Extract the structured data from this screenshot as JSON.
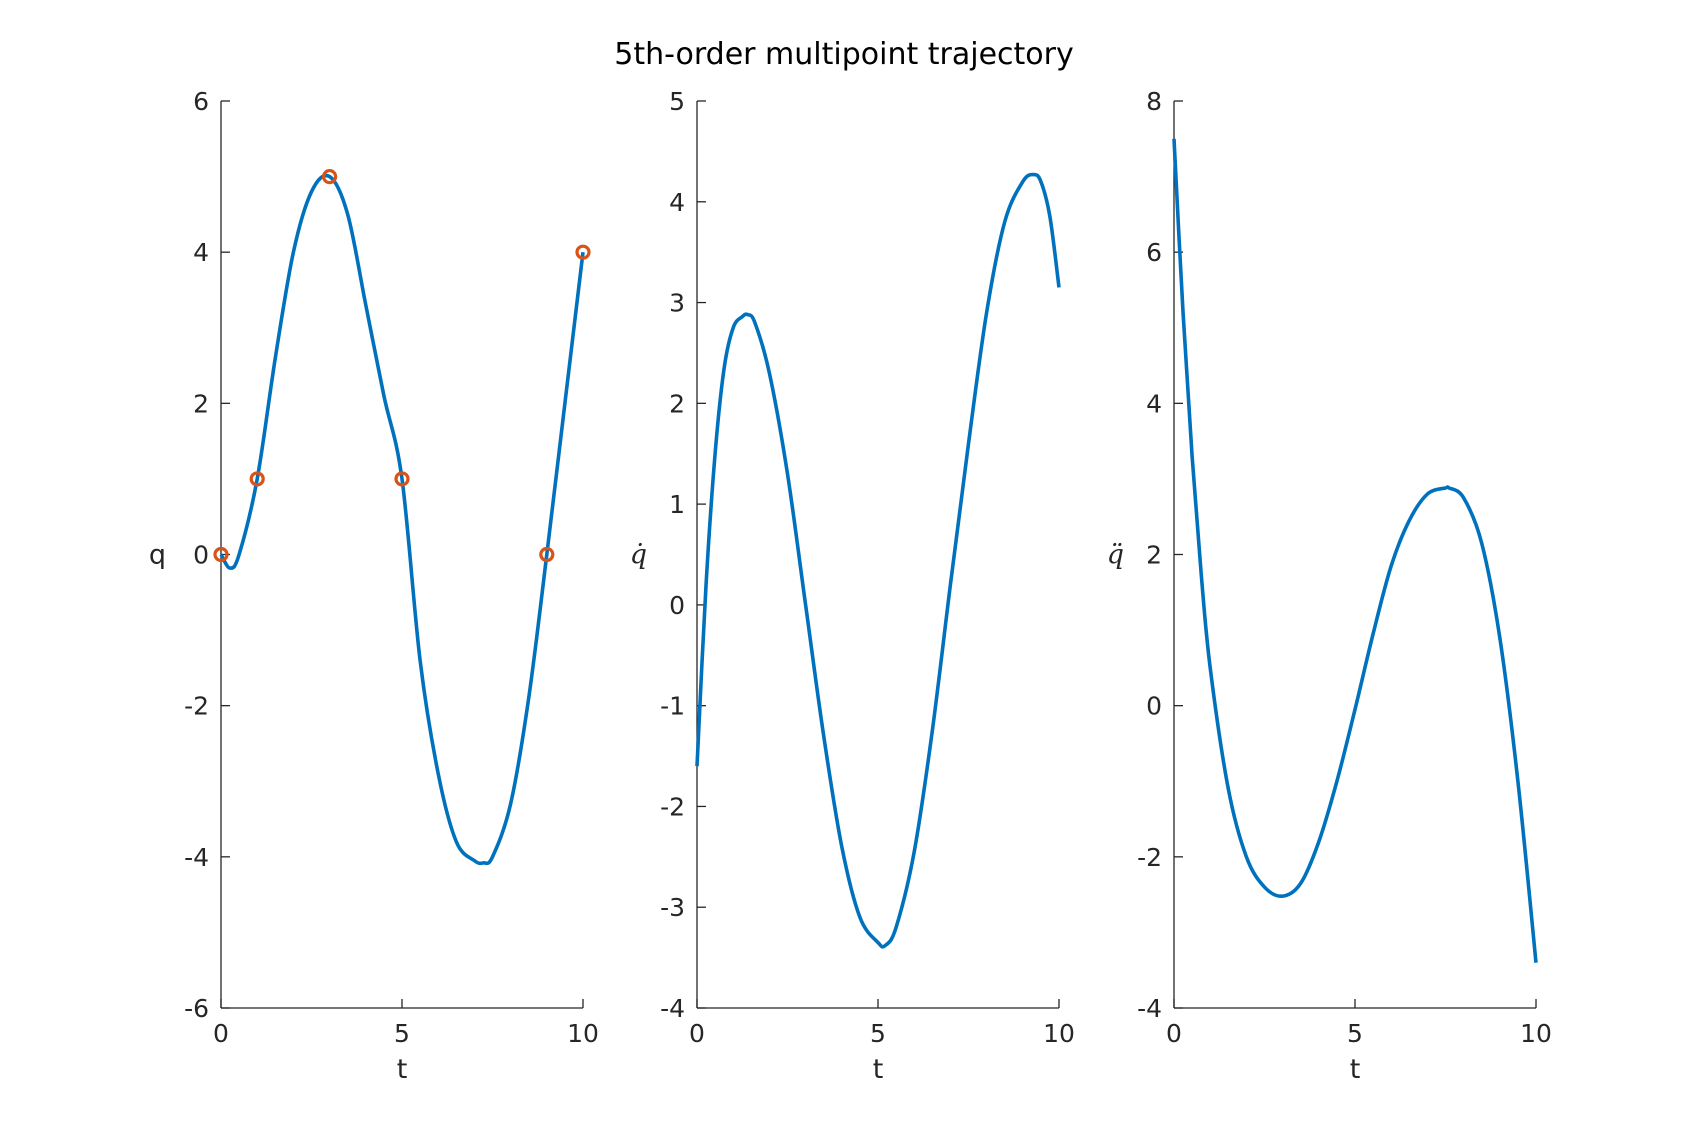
{
  "figure": {
    "title": "5th-order multipoint trajectory",
    "line_color": "#0072BD",
    "marker_color": "#D95319"
  },
  "chart_data": [
    {
      "type": "line",
      "xlabel": "t",
      "ylabel": "q",
      "xlim": [
        0,
        10
      ],
      "ylim": [
        -6,
        6
      ],
      "xticks": [
        0,
        5,
        10
      ],
      "yticks": [
        -6,
        -4,
        -2,
        0,
        2,
        4,
        6
      ],
      "grid": false,
      "series": [
        {
          "x": [
            0,
            0.25,
            0.5,
            1,
            1.5,
            2,
            2.5,
            3,
            3.5,
            4,
            4.5,
            5,
            5.5,
            6,
            6.5,
            7,
            7.25,
            7.5,
            8,
            8.5,
            9,
            9.5,
            10
          ],
          "values": [
            0,
            -0.18,
            0,
            1.0,
            2.6,
            4.0,
            4.8,
            5.0,
            4.5,
            3.3,
            2.1,
            1.0,
            -1.4,
            -2.9,
            -3.8,
            -4.05,
            -4.08,
            -4.0,
            -3.3,
            -1.9,
            0,
            2.0,
            4.0
          ]
        },
        {
          "marker": "o",
          "x": [
            0,
            1,
            3,
            5,
            9,
            10
          ],
          "values": [
            0,
            1,
            5,
            1,
            0,
            4
          ]
        }
      ]
    },
    {
      "type": "line",
      "xlabel": "t",
      "ylabel": "q̇",
      "xlim": [
        0,
        10
      ],
      "ylim": [
        -4,
        5
      ],
      "xticks": [
        0,
        5,
        10
      ],
      "yticks": [
        -4,
        -3,
        -2,
        -1,
        0,
        1,
        2,
        3,
        4,
        5
      ],
      "grid": false,
      "series": [
        {
          "x": [
            0,
            0.25,
            0.5,
            0.75,
            1,
            1.25,
            1.4,
            1.6,
            2,
            2.5,
            3,
            3.5,
            4,
            4.5,
            5,
            5.2,
            5.5,
            6,
            6.5,
            7,
            7.5,
            8,
            8.5,
            9,
            9.3,
            9.5,
            9.75,
            10
          ],
          "values": [
            -1.6,
            0.2,
            1.5,
            2.35,
            2.75,
            2.86,
            2.88,
            2.8,
            2.3,
            1.3,
            0,
            -1.3,
            -2.4,
            -3.1,
            -3.35,
            -3.38,
            -3.2,
            -2.45,
            -1.25,
            0.2,
            1.6,
            2.9,
            3.8,
            4.2,
            4.27,
            4.2,
            3.85,
            3.15
          ]
        }
      ]
    },
    {
      "type": "line",
      "xlabel": "t",
      "ylabel": "q̈",
      "xlim": [
        0,
        10
      ],
      "ylim": [
        -4,
        8
      ],
      "xticks": [
        0,
        5,
        10
      ],
      "yticks": [
        -4,
        -2,
        0,
        2,
        4,
        6,
        8
      ],
      "grid": false,
      "series": [
        {
          "x": [
            0,
            0.25,
            0.5,
            0.75,
            1,
            1.5,
            2,
            2.5,
            3,
            3.5,
            4,
            4.5,
            5,
            5.5,
            6,
            6.5,
            7,
            7.5,
            7.6,
            8,
            8.5,
            9,
            9.5,
            10
          ],
          "values": [
            7.5,
            5.2,
            3.3,
            1.75,
            0.5,
            -1.1,
            -2.0,
            -2.4,
            -2.52,
            -2.35,
            -1.8,
            -1.0,
            -0.05,
            0.95,
            1.85,
            2.45,
            2.8,
            2.88,
            2.88,
            2.75,
            2.15,
            0.9,
            -1.0,
            -3.4
          ]
        }
      ]
    }
  ]
}
